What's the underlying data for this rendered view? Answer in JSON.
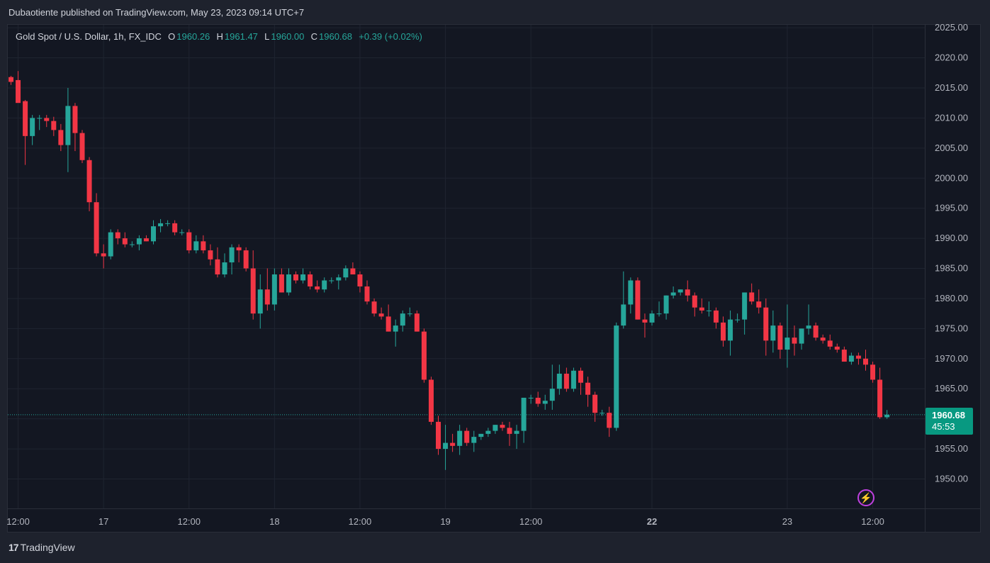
{
  "header": {
    "publisher_line": "Dubaotiente published on TradingView.com, May 23, 2023 09:14 UTC+7"
  },
  "legend": {
    "symbol": "Gold Spot / U.S. Dollar, 1h, FX_IDC",
    "o_label": "O",
    "o_value": "1960.26",
    "h_label": "H",
    "h_value": "1961.47",
    "l_label": "L",
    "l_value": "1960.00",
    "c_label": "C",
    "c_value": "1960.68",
    "change": "+0.39 (+0.02%)"
  },
  "price_badge": {
    "price": "1960.68",
    "countdown": "45:53"
  },
  "footer": {
    "logo_mark": "17",
    "logo_text": "TradingView"
  },
  "colors": {
    "up": "#26a69a",
    "down": "#f23645",
    "background": "#131722",
    "grid": "#1f2430",
    "axis_text": "#b2b5be",
    "badge": "#089981",
    "bolt": "#c040e0"
  },
  "icons": {
    "bolt": "lightning-bolt-icon"
  },
  "chart_data": {
    "type": "candlestick",
    "timeframe": "1h",
    "ylim": [
      1946,
      2027
    ],
    "y_ticks": [
      "2025.00",
      "2020.00",
      "2015.00",
      "2010.00",
      "2005.00",
      "2000.00",
      "1995.00",
      "1990.00",
      "1985.00",
      "1980.00",
      "1975.00",
      "1970.00",
      "1965.00",
      "1960.00",
      "1955.00",
      "1950.00"
    ],
    "x_tick_labels": [
      {
        "index": 1,
        "label": "12:00"
      },
      {
        "index": 13,
        "label": "17"
      },
      {
        "index": 25,
        "label": "12:00"
      },
      {
        "index": 37,
        "label": "18"
      },
      {
        "index": 49,
        "label": "12:00"
      },
      {
        "index": 61,
        "label": "19"
      },
      {
        "index": 73,
        "label": "12:00"
      },
      {
        "index": 90,
        "label": "22",
        "bold": true
      },
      {
        "index": 109,
        "label": "23"
      },
      {
        "index": 121,
        "label": "12:00"
      }
    ],
    "last_price": 1960.68,
    "candles": [
      [
        2016.8,
        2017.0,
        2015.5,
        2016.0
      ],
      [
        2016.3,
        2017.8,
        2012.8,
        2012.5
      ],
      [
        2012.8,
        2013.0,
        2002.2,
        2007.0
      ],
      [
        2007.0,
        2010.5,
        2005.5,
        2010.0
      ],
      [
        2010.0,
        2010.5,
        2008.0,
        2010.0
      ],
      [
        2010.0,
        2010.5,
        2008.5,
        2009.5
      ],
      [
        2009.5,
        2010.2,
        2007.0,
        2008.0
      ],
      [
        2008.0,
        2009.0,
        2004.5,
        2005.5
      ],
      [
        2005.5,
        2015.0,
        2001.0,
        2012.0
      ],
      [
        2012.0,
        2012.5,
        2004.5,
        2007.5
      ],
      [
        2007.5,
        2008.0,
        2002.5,
        2003.0
      ],
      [
        2003.0,
        2003.5,
        1994.5,
        1996.0
      ],
      [
        1996.0,
        1997.5,
        1987.0,
        1987.5
      ],
      [
        1987.5,
        1989.0,
        1985.0,
        1987.0
      ],
      [
        1987.0,
        1991.5,
        1986.5,
        1991.0
      ],
      [
        1991.0,
        1991.5,
        1989.0,
        1990.0
      ],
      [
        1990.0,
        1991.0,
        1988.5,
        1989.0
      ],
      [
        1989.0,
        1989.5,
        1988.5,
        1989.0
      ],
      [
        1989.0,
        1990.5,
        1988.0,
        1990.0
      ],
      [
        1990.0,
        1990.5,
        1989.5,
        1989.5
      ],
      [
        1989.5,
        1993.0,
        1989.0,
        1992.0
      ],
      [
        1992.0,
        1993.2,
        1991.0,
        1992.5
      ],
      [
        1992.5,
        1993.0,
        1992.0,
        1992.5
      ],
      [
        1992.5,
        1993.0,
        1990.5,
        1991.0
      ],
      [
        1991.0,
        1991.5,
        1990.5,
        1991.0
      ],
      [
        1991.0,
        1991.5,
        1987.5,
        1988.0
      ],
      [
        1988.0,
        1990.5,
        1987.5,
        1989.5
      ],
      [
        1989.5,
        1990.5,
        1987.5,
        1988.0
      ],
      [
        1988.0,
        1989.0,
        1985.5,
        1986.5
      ],
      [
        1986.5,
        1988.5,
        1983.5,
        1984.0
      ],
      [
        1984.0,
        1987.5,
        1983.5,
        1986.0
      ],
      [
        1986.0,
        1989.0,
        1984.0,
        1988.5
      ],
      [
        1988.5,
        1989.0,
        1986.0,
        1988.0
      ],
      [
        1988.0,
        1988.5,
        1984.5,
        1985.0
      ],
      [
        1985.0,
        1988.0,
        1976.5,
        1977.5
      ],
      [
        1977.5,
        1984.0,
        1975.0,
        1981.5
      ],
      [
        1981.5,
        1985.0,
        1978.0,
        1979.0
      ],
      [
        1979.0,
        1985.0,
        1978.0,
        1984.0
      ],
      [
        1984.0,
        1985.0,
        1981.0,
        1981.0
      ],
      [
        1981.0,
        1985.0,
        1980.5,
        1984.0
      ],
      [
        1984.0,
        1984.5,
        1982.5,
        1983.0
      ],
      [
        1983.0,
        1985.0,
        1982.5,
        1984.0
      ],
      [
        1984.0,
        1984.5,
        1981.5,
        1982.0
      ],
      [
        1982.0,
        1983.0,
        1981.0,
        1981.5
      ],
      [
        1981.5,
        1983.5,
        1981.0,
        1983.0
      ],
      [
        1983.0,
        1983.5,
        1982.5,
        1983.0
      ],
      [
        1983.0,
        1984.0,
        1981.5,
        1983.5
      ],
      [
        1983.5,
        1985.5,
        1983.0,
        1985.0
      ],
      [
        1985.0,
        1986.0,
        1984.0,
        1984.0
      ],
      [
        1984.0,
        1984.5,
        1981.0,
        1982.0
      ],
      [
        1982.0,
        1983.0,
        1979.0,
        1979.5
      ],
      [
        1979.5,
        1980.0,
        1977.0,
        1977.5
      ],
      [
        1977.5,
        1978.5,
        1976.5,
        1977.0
      ],
      [
        1977.0,
        1979.0,
        1974.5,
        1974.5
      ],
      [
        1974.5,
        1976.5,
        1972.0,
        1975.5
      ],
      [
        1975.5,
        1978.0,
        1974.5,
        1977.5
      ],
      [
        1977.5,
        1978.5,
        1977.0,
        1977.5
      ],
      [
        1977.5,
        1978.0,
        1974.5,
        1974.5
      ],
      [
        1974.5,
        1975.0,
        1966.0,
        1966.5
      ],
      [
        1966.5,
        1967.0,
        1959.0,
        1959.5
      ],
      [
        1959.5,
        1960.5,
        1954.0,
        1955.0
      ],
      [
        1955.0,
        1959.0,
        1951.5,
        1956.0
      ],
      [
        1956.0,
        1957.5,
        1954.5,
        1955.5
      ],
      [
        1955.5,
        1959.0,
        1954.0,
        1958.0
      ],
      [
        1958.0,
        1958.5,
        1955.5,
        1956.0
      ],
      [
        1956.0,
        1958.0,
        1954.5,
        1957.0
      ],
      [
        1957.0,
        1957.5,
        1956.5,
        1957.5
      ],
      [
        1957.5,
        1958.5,
        1957.0,
        1958.0
      ],
      [
        1958.0,
        1959.0,
        1957.5,
        1959.0
      ],
      [
        1959.0,
        1959.5,
        1958.0,
        1958.5
      ],
      [
        1958.5,
        1959.5,
        1955.5,
        1957.5
      ],
      [
        1957.5,
        1959.0,
        1955.0,
        1958.0
      ],
      [
        1958.0,
        1963.5,
        1956.0,
        1963.5
      ],
      [
        1963.5,
        1964.0,
        1962.5,
        1963.5
      ],
      [
        1963.5,
        1964.5,
        1962.0,
        1962.5
      ],
      [
        1962.5,
        1964.0,
        1961.5,
        1963.0
      ],
      [
        1963.0,
        1969.0,
        1961.5,
        1965.0
      ],
      [
        1965.0,
        1969.0,
        1964.0,
        1967.5
      ],
      [
        1967.5,
        1968.5,
        1964.5,
        1965.0
      ],
      [
        1965.0,
        1968.5,
        1964.5,
        1968.0
      ],
      [
        1968.0,
        1968.5,
        1964.0,
        1966.0
      ],
      [
        1966.0,
        1967.0,
        1962.0,
        1964.0
      ],
      [
        1964.0,
        1964.5,
        1959.5,
        1961.0
      ],
      [
        1961.0,
        1961.5,
        1960.5,
        1961.0
      ],
      [
        1961.0,
        1962.0,
        1957.0,
        1958.5
      ],
      [
        1958.5,
        1976.0,
        1958.0,
        1975.5
      ],
      [
        1975.5,
        1984.5,
        1975.0,
        1979.0
      ],
      [
        1979.0,
        1983.5,
        1977.5,
        1983.0
      ],
      [
        1983.0,
        1983.5,
        1976.5,
        1976.5
      ],
      [
        1976.5,
        1977.5,
        1973.5,
        1976.0
      ],
      [
        1976.0,
        1978.0,
        1975.5,
        1977.5
      ],
      [
        1977.5,
        1979.5,
        1977.0,
        1977.5
      ],
      [
        1977.5,
        1980.5,
        1976.5,
        1980.5
      ],
      [
        1980.5,
        1982.0,
        1980.0,
        1981.0
      ],
      [
        1981.0,
        1981.5,
        1980.5,
        1981.5
      ],
      [
        1981.5,
        1983.0,
        1979.5,
        1980.5
      ],
      [
        1980.5,
        1981.0,
        1977.0,
        1978.5
      ],
      [
        1978.5,
        1980.0,
        1977.5,
        1978.0
      ],
      [
        1978.0,
        1979.5,
        1977.0,
        1978.0
      ],
      [
        1978.0,
        1978.5,
        1975.0,
        1976.0
      ],
      [
        1976.0,
        1977.0,
        1972.0,
        1973.0
      ],
      [
        1973.0,
        1978.0,
        1970.5,
        1976.5
      ],
      [
        1976.5,
        1977.5,
        1976.0,
        1976.5
      ],
      [
        1976.5,
        1981.0,
        1974.0,
        1981.0
      ],
      [
        1981.0,
        1982.5,
        1979.0,
        1979.5
      ],
      [
        1979.5,
        1981.5,
        1977.5,
        1978.5
      ],
      [
        1978.5,
        1980.0,
        1970.5,
        1973.0
      ],
      [
        1973.0,
        1978.0,
        1971.0,
        1975.5
      ],
      [
        1975.5,
        1976.0,
        1970.0,
        1971.5
      ],
      [
        1971.5,
        1979.0,
        1968.5,
        1973.5
      ],
      [
        1973.5,
        1975.5,
        1970.5,
        1972.5
      ],
      [
        1972.5,
        1975.0,
        1971.5,
        1975.0
      ],
      [
        1975.0,
        1979.0,
        1974.0,
        1975.5
      ],
      [
        1975.5,
        1976.0,
        1973.0,
        1973.5
      ],
      [
        1973.5,
        1974.0,
        1972.5,
        1973.0
      ],
      [
        1973.0,
        1974.0,
        1971.5,
        1972.0
      ],
      [
        1972.0,
        1972.5,
        1971.0,
        1971.5
      ],
      [
        1971.5,
        1972.0,
        1969.5,
        1969.5
      ],
      [
        1969.5,
        1971.0,
        1969.0,
        1970.5
      ],
      [
        1970.5,
        1971.0,
        1969.0,
        1970.0
      ],
      [
        1970.0,
        1971.5,
        1968.0,
        1969.0
      ],
      [
        1969.0,
        1969.5,
        1966.0,
        1966.5
      ],
      [
        1966.5,
        1968.5,
        1960.0,
        1960.26
      ],
      [
        1960.26,
        1961.47,
        1960.0,
        1960.68
      ]
    ]
  }
}
